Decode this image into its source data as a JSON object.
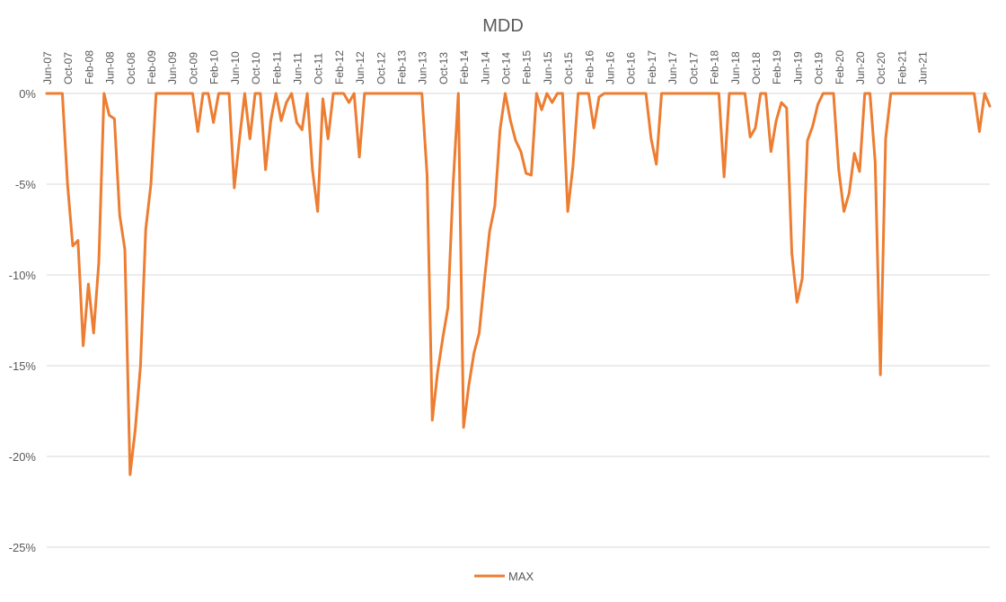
{
  "chart_data": {
    "type": "line",
    "title": "MDD",
    "xlabel": "",
    "ylabel": "",
    "y_ticks": [
      "0%",
      "-5%",
      "-10%",
      "-15%",
      "-20%",
      "-25%"
    ],
    "ylim": [
      -25,
      0
    ],
    "x_tick_labels": [
      "Jun-07",
      "Oct-07",
      "Feb-08",
      "Jun-08",
      "Oct-08",
      "Feb-09",
      "Jun-09",
      "Oct-09",
      "Feb-10",
      "Jun-10",
      "Oct-10",
      "Feb-11",
      "Jun-11",
      "Oct-11",
      "Feb-12",
      "Jun-12",
      "Oct-12",
      "Feb-13",
      "Jun-13",
      "Oct-13",
      "Feb-14",
      "Jun-14",
      "Oct-14",
      "Feb-15",
      "Jun-15",
      "Oct-15",
      "Feb-16",
      "Jun-16",
      "Oct-16",
      "Feb-17",
      "Jun-17",
      "Oct-17",
      "Feb-18",
      "Jun-18",
      "Oct-18",
      "Feb-19",
      "Jun-19",
      "Oct-19",
      "Feb-20",
      "Jun-20",
      "Oct-20",
      "Feb-21",
      "Jun-21"
    ],
    "x_start": "Jun-07",
    "grid": true,
    "legend_position": "bottom",
    "series": [
      {
        "name": "MAX",
        "color": "#ED7D31",
        "values": [
          0,
          0,
          0,
          0,
          -5,
          -8.4,
          -8.1,
          -13.9,
          -10.5,
          -13.2,
          -9.3,
          0,
          -1.2,
          -1.4,
          -6.7,
          -8.6,
          -21,
          -18.5,
          -15,
          -7.5,
          -5,
          0,
          0,
          0,
          0,
          0,
          0,
          0,
          0,
          -2.1,
          0,
          0,
          -1.6,
          0,
          0,
          0,
          -5.2,
          -2.5,
          0,
          -2.5,
          0,
          0,
          -4.2,
          -1.5,
          0,
          -1.5,
          -0.5,
          0,
          -1.6,
          -2,
          0,
          -4.2,
          -6.5,
          -0.3,
          -2.5,
          0,
          0,
          0,
          -0.5,
          0,
          -3.5,
          0,
          0,
          0,
          0,
          0,
          0,
          0,
          0,
          0,
          0,
          0,
          0,
          -4.5,
          -18,
          -15.4,
          -13.5,
          -11.8,
          -5,
          0,
          -18.4,
          -16.1,
          -14.3,
          -13.2,
          -10.3,
          -7.6,
          -6.2,
          -2,
          0,
          -1.5,
          -2.6,
          -3.2,
          -4.4,
          -4.5,
          0,
          -0.9,
          0,
          -0.5,
          0,
          0,
          -6.5,
          -4,
          0,
          0,
          0,
          -1.9,
          -0.2,
          0,
          0,
          0,
          0,
          0,
          0,
          0,
          0,
          0,
          -2.5,
          -3.9,
          0,
          0,
          0,
          0,
          0,
          0,
          0,
          0,
          0,
          0,
          0,
          0,
          -4.6,
          0,
          0,
          0,
          0,
          -2.4,
          -1.9,
          0,
          0,
          -3.2,
          -1.5,
          -0.5,
          -0.8,
          -8.8,
          -11.5,
          -10.2,
          -2.6,
          -1.8,
          -0.6,
          0,
          0,
          0,
          -4.2,
          -6.5,
          -5.5,
          -3.3,
          -4.3,
          0,
          0,
          -3.8,
          -15.5,
          -2.5,
          0,
          0,
          0,
          0,
          0,
          0,
          0,
          0,
          0,
          0,
          0,
          0,
          0,
          0,
          0,
          0,
          0,
          -2.1,
          0,
          -0.7
        ]
      }
    ]
  }
}
